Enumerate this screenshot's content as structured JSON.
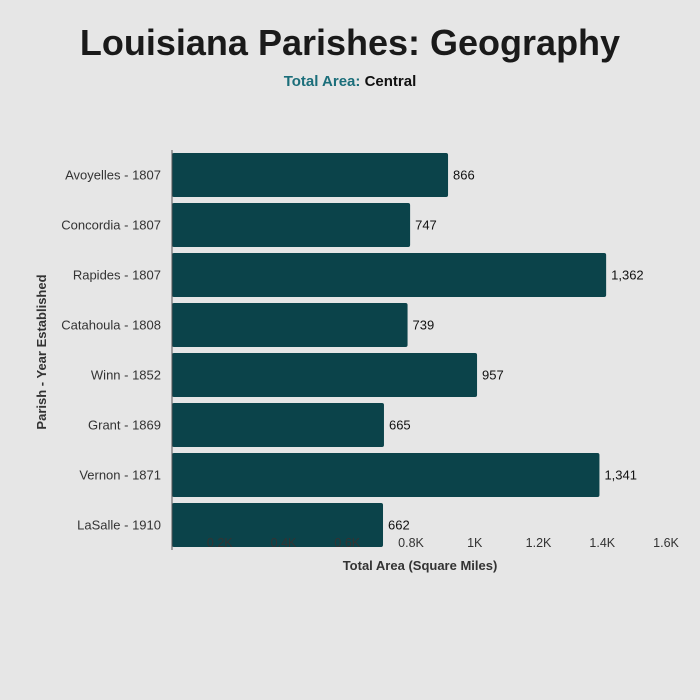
{
  "title": "Louisiana Parishes: Geography",
  "subtitle": {
    "key": "Total Area:",
    "value": "Central"
  },
  "colors": {
    "bar": "#0b434a",
    "accent": "#1b6e7a",
    "background": "#e6e6e6"
  },
  "chart_data": {
    "type": "bar",
    "orientation": "horizontal",
    "title": "Louisiana Parishes: Geography",
    "xlabel": "Total Area (Square Miles)",
    "ylabel": "Parish - Year Established",
    "categories": [
      "Avoyelles - 1807",
      "Concordia - 1807",
      "Rapides - 1807",
      "Catahoula - 1808",
      "Winn - 1852",
      "Grant - 1869",
      "Vernon - 1871",
      "LaSalle - 1910"
    ],
    "values": [
      866,
      747,
      1362,
      739,
      957,
      665,
      1341,
      662
    ],
    "data_labels": [
      "866",
      "747",
      "1,362",
      "739",
      "957",
      "665",
      "1,341",
      "662"
    ],
    "xlim": [
      0,
      1600
    ],
    "xticks": [
      200,
      400,
      600,
      800,
      1000,
      1200,
      1400,
      1600
    ],
    "xtick_labels": [
      "0.2K",
      "0.4K",
      "0.6K",
      "0.8K",
      "1K",
      "1.2K",
      "1.4K",
      "1.6K"
    ],
    "grid": false,
    "legend": "none"
  }
}
